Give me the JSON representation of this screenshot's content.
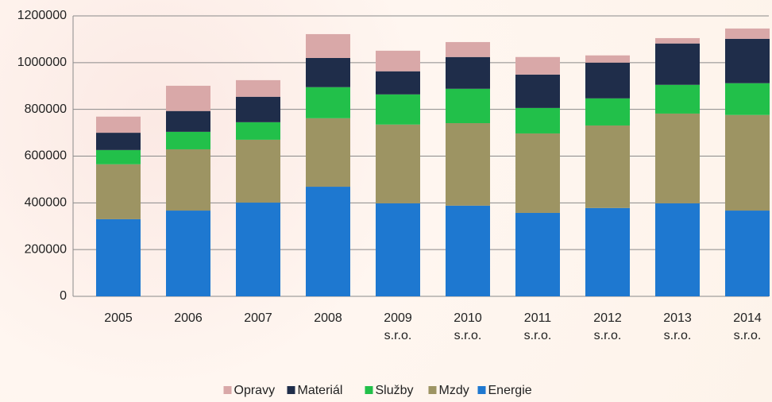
{
  "chart_data": {
    "type": "stacked_bar",
    "categories": [
      "2005",
      "2006",
      "2007",
      "2008",
      "2009\ns.r.o.",
      "2010\ns.r.o.",
      "2011\ns.r.o.",
      "2012\ns.r.o.",
      "2013\ns.r.o.",
      "2014\ns.r.o."
    ],
    "series": [
      {
        "name": "Energie",
        "color": "#1e78d0",
        "values": [
          330000,
          367000,
          401000,
          469000,
          398000,
          388000,
          357000,
          378000,
          398000,
          367000
        ]
      },
      {
        "name": "Mzdy",
        "color": "#9d9463",
        "values": [
          235000,
          262000,
          269000,
          293000,
          337000,
          353000,
          340000,
          353000,
          384000,
          409000
        ]
      },
      {
        "name": "Služby",
        "color": "#22c04a",
        "values": [
          61000,
          75000,
          75000,
          133000,
          129000,
          147000,
          109000,
          116000,
          123000,
          136000
        ]
      },
      {
        "name": "Materiál",
        "color": "#1f2d4a",
        "values": [
          74000,
          89000,
          109000,
          125000,
          99000,
          136000,
          143000,
          153000,
          177000,
          190000
        ]
      },
      {
        "name": "Opravy",
        "color": "#d9a8a8",
        "values": [
          69000,
          108000,
          71000,
          102000,
          88000,
          64000,
          75000,
          31000,
          23000,
          44000
        ]
      }
    ],
    "ylim": [
      0,
      1200000
    ],
    "yticks": [
      0,
      200000,
      400000,
      600000,
      800000,
      1000000,
      1200000
    ],
    "grid": true,
    "legend": "bottom"
  }
}
